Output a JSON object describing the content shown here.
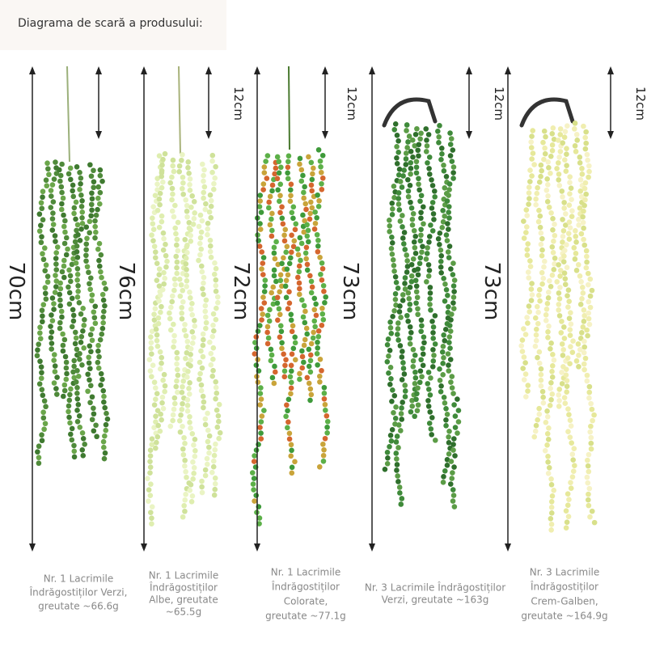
{
  "header": {
    "title": "Diagrama de scară a produsului:"
  },
  "lengths": [
    "70cm",
    "76cm",
    "72cm",
    "73cm",
    "73cm"
  ],
  "top_labels": [
    "12cm",
    "12cm",
    "12cm",
    "12cm"
  ],
  "captions": [
    [
      "Nr. 1 Lacrimile",
      "Îndrăgostiților Verzi,",
      "greutate ~66.6g"
    ],
    [
      "Nr. 1 Lacrimile",
      "Îndrăgostiților",
      "Albe, greutate",
      "~65.5g"
    ],
    [
      "Nr. 1 Lacrimile",
      "Îndrăgostiților",
      "Colorate,",
      "greutate ~77.1g"
    ],
    [
      "Nr. 3 Lacrimile Îndrăgostiților",
      "Verzi, greutate ~163g"
    ],
    [
      "Nr. 3 Lacrimile",
      "Îndrăgostiților",
      "Crem-Galben,",
      "greutate ~164.9g"
    ]
  ]
}
